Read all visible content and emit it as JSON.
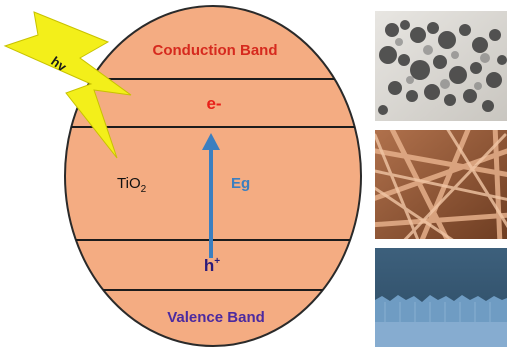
{
  "diagram": {
    "conduction_band": "Conduction Band",
    "valence_band": "Valence Band",
    "electron": "e-",
    "hole": "h",
    "hole_sup": "+",
    "bandgap": "Eg",
    "material_main": "TiO",
    "material_sub": "2",
    "photon": "hv"
  },
  "colors": {
    "sphere_fill": "#f4ac82",
    "sphere_stroke": "#2a2a2a",
    "band_text": "#d62a1e",
    "electron_text": "#e8201a",
    "hole_text": "#2a1a7a",
    "valence_text": "#4b2aa0",
    "arrow": "#3b7fc0",
    "bolt": "#f3ef1a"
  }
}
